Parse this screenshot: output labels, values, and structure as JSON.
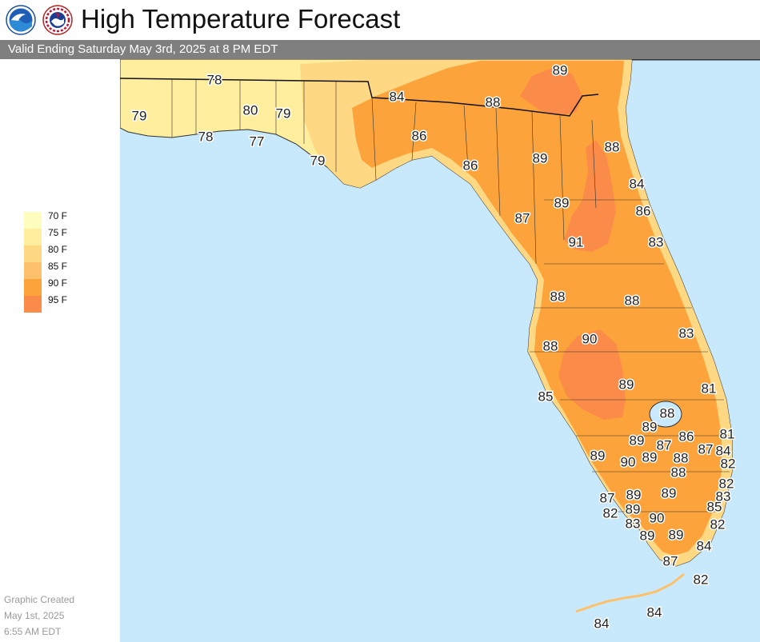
{
  "header": {
    "title": "High Temperature Forecast",
    "logos": [
      {
        "name": "noaa-logo",
        "text": "NOAA"
      },
      {
        "name": "nws-logo",
        "text": "NATIONAL WEATHER SERVICE"
      }
    ]
  },
  "subtitle": "Valid Ending Saturday May 3rd, 2025 at 8 PM EDT",
  "legend": {
    "items": [
      {
        "label": "70 F",
        "color": "#fffcbf"
      },
      {
        "label": "75 F",
        "color": "#ffee9e"
      },
      {
        "label": "80 F",
        "color": "#ffd883"
      },
      {
        "label": "85 F",
        "color": "#fdc06b"
      },
      {
        "label": "90 F",
        "color": "#fca43b"
      },
      {
        "label": "95 F",
        "color": "#fb8b48"
      }
    ]
  },
  "credit": {
    "line1": "Graphic Created",
    "line2": "May 1st, 2025",
    "line3": "6:55 AM EDT"
  },
  "map": {
    "water_color": "#c8e8fc",
    "temperatures": [
      {
        "value": "89"
      },
      {
        "value": "78"
      },
      {
        "value": "84"
      },
      {
        "value": "88"
      },
      {
        "value": "79"
      },
      {
        "value": "80"
      },
      {
        "value": "79"
      },
      {
        "value": "78"
      },
      {
        "value": "77"
      },
      {
        "value": "86"
      },
      {
        "value": "79"
      },
      {
        "value": "88"
      },
      {
        "value": "89"
      },
      {
        "value": "86"
      },
      {
        "value": "84"
      },
      {
        "value": "89"
      },
      {
        "value": "86"
      },
      {
        "value": "87"
      },
      {
        "value": "91"
      },
      {
        "value": "83"
      },
      {
        "value": "88"
      },
      {
        "value": "88"
      },
      {
        "value": "83"
      },
      {
        "value": "90"
      },
      {
        "value": "88"
      },
      {
        "value": "89"
      },
      {
        "value": "85"
      },
      {
        "value": "81"
      },
      {
        "value": "88"
      },
      {
        "value": "89"
      },
      {
        "value": "86"
      },
      {
        "value": "81"
      },
      {
        "value": "89"
      },
      {
        "value": "87"
      },
      {
        "value": "87"
      },
      {
        "value": "84"
      },
      {
        "value": "89"
      },
      {
        "value": "90"
      },
      {
        "value": "89"
      },
      {
        "value": "88"
      },
      {
        "value": "82"
      },
      {
        "value": "88"
      },
      {
        "value": "82"
      },
      {
        "value": "89"
      },
      {
        "value": "83"
      },
      {
        "value": "87"
      },
      {
        "value": "89"
      },
      {
        "value": "85"
      },
      {
        "value": "82"
      },
      {
        "value": "89"
      },
      {
        "value": "90"
      },
      {
        "value": "83"
      },
      {
        "value": "82"
      },
      {
        "value": "89"
      },
      {
        "value": "89"
      },
      {
        "value": "84"
      },
      {
        "value": "87"
      },
      {
        "value": "82"
      },
      {
        "value": "84"
      },
      {
        "value": "84"
      }
    ]
  }
}
